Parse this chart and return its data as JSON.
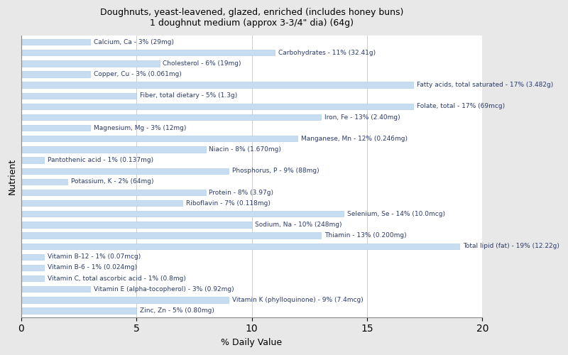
{
  "title": "Doughnuts, yeast-leavened, glazed, enriched (includes honey buns)\n1 doughnut medium (approx 3-3/4\" dia) (64g)",
  "xlabel": "% Daily Value",
  "ylabel": "Nutrient",
  "xlim": [
    0,
    20
  ],
  "xticks": [
    0,
    5,
    10,
    15,
    20
  ],
  "bar_color": "#c6dcf0",
  "bar_edge_color": "#a8c8e8",
  "background_color": "#e8e8e8",
  "plot_bg_color": "#ffffff",
  "text_color": "#2a3a6a",
  "label_fontsize": 6.5,
  "nutrients": [
    {
      "label": "Calcium, Ca - 3% (29mg)",
      "value": 3
    },
    {
      "label": "Carbohydrates - 11% (32.41g)",
      "value": 11
    },
    {
      "label": "Cholesterol - 6% (19mg)",
      "value": 6
    },
    {
      "label": "Copper, Cu - 3% (0.061mg)",
      "value": 3
    },
    {
      "label": "Fatty acids, total saturated - 17% (3.482g)",
      "value": 17
    },
    {
      "label": "Fiber, total dietary - 5% (1.3g)",
      "value": 5
    },
    {
      "label": "Folate, total - 17% (69mcg)",
      "value": 17
    },
    {
      "label": "Iron, Fe - 13% (2.40mg)",
      "value": 13
    },
    {
      "label": "Magnesium, Mg - 3% (12mg)",
      "value": 3
    },
    {
      "label": "Manganese, Mn - 12% (0.246mg)",
      "value": 12
    },
    {
      "label": "Niacin - 8% (1.670mg)",
      "value": 8
    },
    {
      "label": "Pantothenic acid - 1% (0.137mg)",
      "value": 1
    },
    {
      "label": "Phosphorus, P - 9% (88mg)",
      "value": 9
    },
    {
      "label": "Potassium, K - 2% (64mg)",
      "value": 2
    },
    {
      "label": "Protein - 8% (3.97g)",
      "value": 8
    },
    {
      "label": "Riboflavin - 7% (0.118mg)",
      "value": 7
    },
    {
      "label": "Selenium, Se - 14% (10.0mcg)",
      "value": 14
    },
    {
      "label": "Sodium, Na - 10% (248mg)",
      "value": 10
    },
    {
      "label": "Thiamin - 13% (0.200mg)",
      "value": 13
    },
    {
      "label": "Total lipid (fat) - 19% (12.22g)",
      "value": 19
    },
    {
      "label": "Vitamin B-12 - 1% (0.07mcg)",
      "value": 1
    },
    {
      "label": "Vitamin B-6 - 1% (0.024mg)",
      "value": 1
    },
    {
      "label": "Vitamin C, total ascorbic acid - 1% (0.8mg)",
      "value": 1
    },
    {
      "label": "Vitamin E (alpha-tocopherol) - 3% (0.92mg)",
      "value": 3
    },
    {
      "label": "Vitamin K (phylloquinone) - 9% (7.4mcg)",
      "value": 9
    },
    {
      "label": "Zinc, Zn - 5% (0.80mg)",
      "value": 5
    }
  ]
}
